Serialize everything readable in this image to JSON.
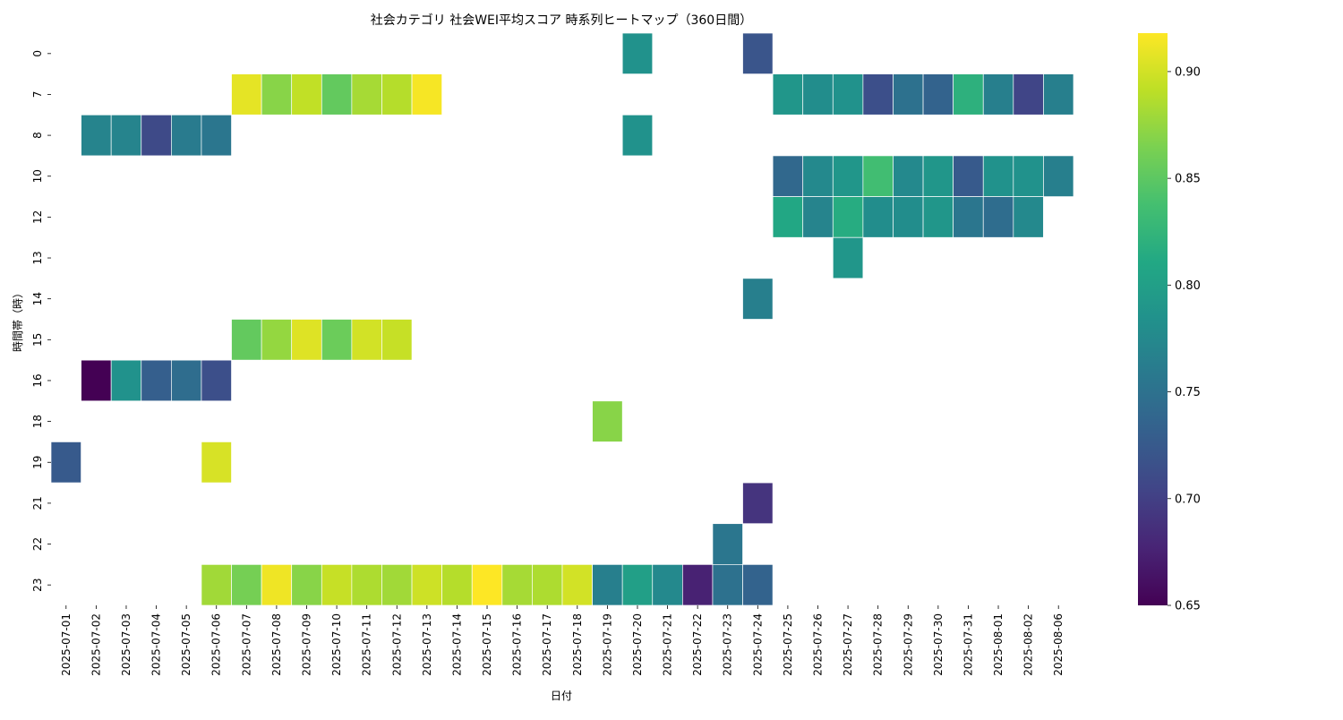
{
  "chart_data": {
    "type": "heatmap",
    "title": "社会カテゴリ 社会WEI平均スコア 時系列ヒートマップ（360日間）",
    "xlabel": "日付",
    "ylabel": "時間帯（時）",
    "x": [
      "2025-07-01",
      "2025-07-02",
      "2025-07-03",
      "2025-07-04",
      "2025-07-05",
      "2025-07-06",
      "2025-07-07",
      "2025-07-08",
      "2025-07-09",
      "2025-07-10",
      "2025-07-11",
      "2025-07-12",
      "2025-07-13",
      "2025-07-14",
      "2025-07-15",
      "2025-07-16",
      "2025-07-17",
      "2025-07-18",
      "2025-07-19",
      "2025-07-20",
      "2025-07-21",
      "2025-07-22",
      "2025-07-23",
      "2025-07-24",
      "2025-07-25",
      "2025-07-26",
      "2025-07-27",
      "2025-07-28",
      "2025-07-29",
      "2025-07-30",
      "2025-07-31",
      "2025-08-01",
      "2025-08-02",
      "2025-08-06"
    ],
    "y": [
      "0",
      "7",
      "8",
      "10",
      "12",
      "13",
      "14",
      "15",
      "16",
      "18",
      "19",
      "21",
      "22",
      "23"
    ],
    "colorbar": {
      "vmin": 0.65,
      "vmax": 0.918,
      "ticks": [
        "0.65",
        "0.70",
        "0.75",
        "0.80",
        "0.85",
        "0.90"
      ],
      "colormap": "viridis"
    },
    "cells": [
      {
        "hour": "0",
        "date": "2025-07-20",
        "value": 0.785
      },
      {
        "hour": "0",
        "date": "2025-07-24",
        "value": 0.72
      },
      {
        "hour": "7",
        "date": "2025-07-07",
        "value": 0.908
      },
      {
        "hour": "7",
        "date": "2025-07-08",
        "value": 0.87
      },
      {
        "hour": "7",
        "date": "2025-07-09",
        "value": 0.893
      },
      {
        "hour": "7",
        "date": "2025-07-10",
        "value": 0.853
      },
      {
        "hour": "7",
        "date": "2025-07-11",
        "value": 0.882
      },
      {
        "hour": "7",
        "date": "2025-07-12",
        "value": 0.888
      },
      {
        "hour": "7",
        "date": "2025-07-13",
        "value": 0.915
      },
      {
        "hour": "7",
        "date": "2025-07-25",
        "value": 0.79
      },
      {
        "hour": "7",
        "date": "2025-07-26",
        "value": 0.78
      },
      {
        "hour": "7",
        "date": "2025-07-27",
        "value": 0.785
      },
      {
        "hour": "7",
        "date": "2025-07-28",
        "value": 0.715
      },
      {
        "hour": "7",
        "date": "2025-07-29",
        "value": 0.75
      },
      {
        "hour": "7",
        "date": "2025-07-30",
        "value": 0.735
      },
      {
        "hour": "7",
        "date": "2025-07-31",
        "value": 0.82
      },
      {
        "hour": "7",
        "date": "2025-08-01",
        "value": 0.765
      },
      {
        "hour": "7",
        "date": "2025-08-02",
        "value": 0.705
      },
      {
        "hour": "7",
        "date": "2025-08-06",
        "value": 0.765
      },
      {
        "hour": "8",
        "date": "2025-07-02",
        "value": 0.77
      },
      {
        "hour": "8",
        "date": "2025-07-03",
        "value": 0.77
      },
      {
        "hour": "8",
        "date": "2025-07-04",
        "value": 0.71
      },
      {
        "hour": "8",
        "date": "2025-07-05",
        "value": 0.76
      },
      {
        "hour": "8",
        "date": "2025-07-06",
        "value": 0.755
      },
      {
        "hour": "8",
        "date": "2025-07-20",
        "value": 0.785
      },
      {
        "hour": "10",
        "date": "2025-07-25",
        "value": 0.74
      },
      {
        "hour": "10",
        "date": "2025-07-26",
        "value": 0.775
      },
      {
        "hour": "10",
        "date": "2025-07-27",
        "value": 0.79
      },
      {
        "hour": "10",
        "date": "2025-07-28",
        "value": 0.835
      },
      {
        "hour": "10",
        "date": "2025-07-29",
        "value": 0.775
      },
      {
        "hour": "10",
        "date": "2025-07-30",
        "value": 0.79
      },
      {
        "hour": "10",
        "date": "2025-07-31",
        "value": 0.725
      },
      {
        "hour": "10",
        "date": "2025-08-01",
        "value": 0.785
      },
      {
        "hour": "10",
        "date": "2025-08-02",
        "value": 0.785
      },
      {
        "hour": "10",
        "date": "2025-08-06",
        "value": 0.765
      },
      {
        "hour": "12",
        "date": "2025-07-25",
        "value": 0.81
      },
      {
        "hour": "12",
        "date": "2025-07-26",
        "value": 0.77
      },
      {
        "hour": "12",
        "date": "2025-07-27",
        "value": 0.815
      },
      {
        "hour": "12",
        "date": "2025-07-28",
        "value": 0.78
      },
      {
        "hour": "12",
        "date": "2025-07-29",
        "value": 0.78
      },
      {
        "hour": "12",
        "date": "2025-07-30",
        "value": 0.79
      },
      {
        "hour": "12",
        "date": "2025-07-31",
        "value": 0.755
      },
      {
        "hour": "12",
        "date": "2025-08-01",
        "value": 0.745
      },
      {
        "hour": "12",
        "date": "2025-08-02",
        "value": 0.775
      },
      {
        "hour": "13",
        "date": "2025-07-27",
        "value": 0.79
      },
      {
        "hour": "14",
        "date": "2025-07-24",
        "value": 0.765
      },
      {
        "hour": "15",
        "date": "2025-07-07",
        "value": 0.853
      },
      {
        "hour": "15",
        "date": "2025-07-08",
        "value": 0.875
      },
      {
        "hour": "15",
        "date": "2025-07-09",
        "value": 0.905
      },
      {
        "hour": "15",
        "date": "2025-07-10",
        "value": 0.857
      },
      {
        "hour": "15",
        "date": "2025-07-11",
        "value": 0.9
      },
      {
        "hour": "15",
        "date": "2025-07-12",
        "value": 0.895
      },
      {
        "hour": "16",
        "date": "2025-07-02",
        "value": 0.65
      },
      {
        "hour": "16",
        "date": "2025-07-03",
        "value": 0.785
      },
      {
        "hour": "16",
        "date": "2025-07-04",
        "value": 0.73
      },
      {
        "hour": "16",
        "date": "2025-07-05",
        "value": 0.745
      },
      {
        "hour": "16",
        "date": "2025-07-06",
        "value": 0.715
      },
      {
        "hour": "18",
        "date": "2025-07-19",
        "value": 0.87
      },
      {
        "hour": "19",
        "date": "2025-07-01",
        "value": 0.725
      },
      {
        "hour": "19",
        "date": "2025-07-06",
        "value": 0.902
      },
      {
        "hour": "21",
        "date": "2025-07-24",
        "value": 0.69
      },
      {
        "hour": "22",
        "date": "2025-07-23",
        "value": 0.755
      },
      {
        "hour": "23",
        "date": "2025-07-06",
        "value": 0.88
      },
      {
        "hour": "23",
        "date": "2025-07-07",
        "value": 0.862
      },
      {
        "hour": "23",
        "date": "2025-07-08",
        "value": 0.912
      },
      {
        "hour": "23",
        "date": "2025-07-09",
        "value": 0.87
      },
      {
        "hour": "23",
        "date": "2025-07-10",
        "value": 0.895
      },
      {
        "hour": "23",
        "date": "2025-07-11",
        "value": 0.885
      },
      {
        "hour": "23",
        "date": "2025-07-12",
        "value": 0.88
      },
      {
        "hour": "23",
        "date": "2025-07-13",
        "value": 0.898
      },
      {
        "hour": "23",
        "date": "2025-07-14",
        "value": 0.888
      },
      {
        "hour": "23",
        "date": "2025-07-15",
        "value": 0.918
      },
      {
        "hour": "23",
        "date": "2025-07-16",
        "value": 0.882
      },
      {
        "hour": "23",
        "date": "2025-07-17",
        "value": 0.885
      },
      {
        "hour": "23",
        "date": "2025-07-18",
        "value": 0.9
      },
      {
        "hour": "23",
        "date": "2025-07-19",
        "value": 0.765
      },
      {
        "hour": "23",
        "date": "2025-07-20",
        "value": 0.8
      },
      {
        "hour": "23",
        "date": "2025-07-21",
        "value": 0.775
      },
      {
        "hour": "23",
        "date": "2025-07-22",
        "value": 0.675
      },
      {
        "hour": "23",
        "date": "2025-07-23",
        "value": 0.75
      },
      {
        "hour": "23",
        "date": "2025-07-24",
        "value": 0.735
      }
    ]
  }
}
